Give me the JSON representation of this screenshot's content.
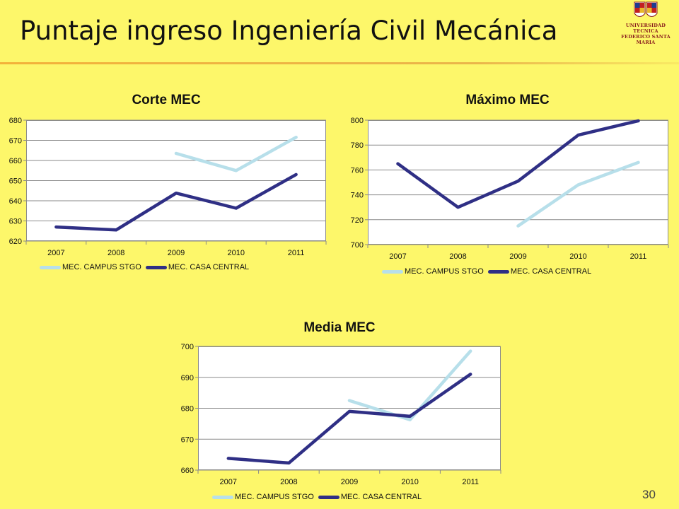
{
  "slide": {
    "title": "Puntaje ingreso Ingeniería Civil Mecánica",
    "page_number": "30",
    "logo_text_line1": "UNIVERSIDAD TECNICA",
    "logo_text_line2": "FEDERICO SANTA MARIA"
  },
  "colors": {
    "background": "#fdf76a",
    "campus_stgo": "#b7dfea",
    "casa_central": "#2f2f85",
    "title_rule": "#f3b23a"
  },
  "chart_data": [
    {
      "type": "line",
      "title": "Corte MEC",
      "categories": [
        "2007",
        "2008",
        "2009",
        "2010",
        "2011"
      ],
      "ylim": [
        620,
        680
      ],
      "yticks": [
        620,
        630,
        640,
        650,
        660,
        670,
        680
      ],
      "grid": true,
      "legend": "bottom",
      "series": [
        {
          "name": "MEC. CAMPUS STGO",
          "values": [
            null,
            null,
            663.5,
            655,
            671.5
          ]
        },
        {
          "name": "MEC. CASA CENTRAL",
          "values": [
            627,
            625.5,
            643.8,
            636.3,
            653
          ]
        }
      ]
    },
    {
      "type": "line",
      "title": "Máximo MEC",
      "categories": [
        "2007",
        "2008",
        "2009",
        "2010",
        "2011"
      ],
      "ylim": [
        700,
        800
      ],
      "yticks": [
        700,
        720,
        740,
        760,
        780,
        800
      ],
      "grid": true,
      "legend": "bottom",
      "series": [
        {
          "name": "MEC. CAMPUS STGO",
          "values": [
            null,
            null,
            715,
            748,
            766
          ]
        },
        {
          "name": "MEC. CASA CENTRAL",
          "values": [
            765,
            730,
            751,
            788,
            799.5
          ]
        }
      ]
    },
    {
      "type": "line",
      "title": "Media MEC",
      "categories": [
        "2007",
        "2008",
        "2009",
        "2010",
        "2011"
      ],
      "ylim": [
        660,
        700
      ],
      "yticks": [
        660,
        670,
        680,
        690,
        700
      ],
      "grid": true,
      "legend": "bottom",
      "series": [
        {
          "name": "MEC. CAMPUS STGO",
          "values": [
            null,
            null,
            682.5,
            676.3,
            698.5
          ]
        },
        {
          "name": "MEC. CASA CENTRAL",
          "values": [
            663.8,
            662.3,
            679,
            677.4,
            691
          ]
        }
      ]
    }
  ]
}
